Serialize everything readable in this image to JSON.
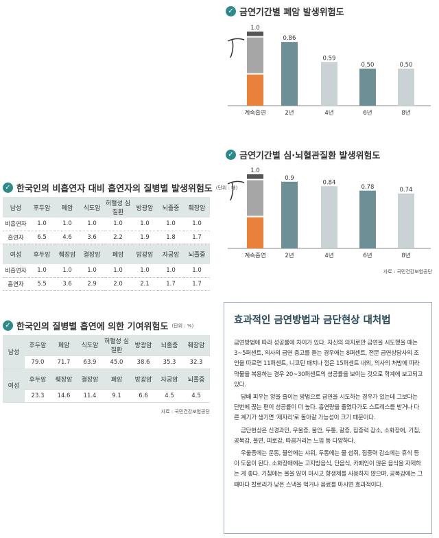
{
  "chart1": {
    "heading": "금연기간별 폐암 발생위험도",
    "chart_data": {
      "type": "bar",
      "categories": [
        "계속흡연",
        "2년",
        "4년",
        "6년",
        "8년"
      ],
      "values": [
        1.0,
        0.86,
        0.59,
        0.5,
        0.5
      ],
      "value_labels": [
        "1.0",
        "0.86",
        "0.59",
        "0.50",
        "0.50"
      ],
      "ylim": [
        0,
        1.0
      ],
      "colors": [
        "#e8823a",
        "#6e8f95",
        "#c9d3d6",
        "#6e8f95",
        "#c9d3d6"
      ]
    }
  },
  "chart2": {
    "heading": "금연기간별 심·뇌혈관질환 발생위험도",
    "chart_data": {
      "type": "bar",
      "categories": [
        "계속흡연",
        "2년",
        "4년",
        "6년",
        "8년"
      ],
      "values": [
        1.0,
        0.9,
        0.84,
        0.78,
        0.74
      ],
      "value_labels": [
        "1.0",
        "0.9",
        "0.84",
        "0.78",
        "0.74"
      ],
      "ylim": [
        0,
        1.0
      ],
      "colors": [
        "#e8823a",
        "#6e8f95",
        "#c9d3d6",
        "#6e8f95",
        "#c9d3d6"
      ]
    },
    "source": "자료 : 국민건강보험공단"
  },
  "table1": {
    "heading": "한국인의 비흡연자 대비 흡연자의 질병별 발생위험도",
    "unit": "(단위 : 배)",
    "male": {
      "header": [
        "남성",
        "후두암",
        "폐암",
        "식도암",
        "허혈성 심질환",
        "방광암",
        "뇌졸중",
        "췌장암"
      ],
      "rows": [
        [
          "비흡연자",
          "1.0",
          "1.0",
          "1.0",
          "1.0",
          "1.0",
          "1.0",
          "1.0"
        ],
        [
          "흡연자",
          "6.5",
          "4.6",
          "3.6",
          "2.2",
          "1.9",
          "1.8",
          "1.7"
        ]
      ]
    },
    "female": {
      "header": [
        "여성",
        "후두암",
        "췌장암",
        "결장암",
        "폐암",
        "방광암",
        "자궁암",
        "뇌졸중"
      ],
      "rows": [
        [
          "비흡연자",
          "1.0",
          "1.0",
          "1.0",
          "1.0",
          "1.0",
          "1.0",
          "1.0"
        ],
        [
          "흡연자",
          "5.5",
          "3.6",
          "2.9",
          "2.0",
          "2.1",
          "1.7",
          "1.7"
        ]
      ]
    }
  },
  "table2": {
    "heading": "한국인의 질병별 흡연에 의한 기여위험도",
    "unit": "(단위 : %)",
    "male": {
      "label": "남성",
      "header": [
        "후두암",
        "폐암",
        "식도암",
        "허혈성 심질환",
        "방광암",
        "뇌졸중",
        "췌장암"
      ],
      "values": [
        "79.0",
        "71.7",
        "63.9",
        "45.0",
        "38.6",
        "35.3",
        "32.3"
      ]
    },
    "female": {
      "label": "여성",
      "header": [
        "후두암",
        "췌장암",
        "결장암",
        "폐암",
        "방광암",
        "자궁암",
        "뇌졸중"
      ],
      "values": [
        "23.3",
        "14.6",
        "11.4",
        "9.1",
        "6.6",
        "4.5",
        "4.5"
      ]
    },
    "source": "자료 : 국민건강보험공단"
  },
  "article": {
    "title": "효과적인 금연방법과 금단현상 대처법",
    "paragraphs": [
      "금연방법에 따라 성공률에 차이가 있다. 자신의 의지로만 금연을 시도했을 때는 3~5퍼센트, 의사의 금연 충고를 듣는 경우에는 8퍼센트, 전문 금연상담사의 조언을 따르면 11퍼센트, 니코틴 패치나 껌은 15퍼센트 내외, 의사의 처방에 따라 약물을 복용하는 경우 20~30퍼센트의 성공률을 보이는 것으로 학계에 보고되고 있다.",
      "담배 피우는 양을 줄이는 방법으로 금연을 시도하는 경우가 있는데 그보다는 단번에 끊는 편이 성공률이 더 높다. 흡연량을 줄였다가도 스트레스를 받거나 다른 계기가 생기면 '제자리'로 돌아갈 가능성이 크기 때문이다.",
      "금단현상은 신경과민, 우울증, 불안, 두통, 갈증, 집중력 감소, 소화장애, 기침, 공복감, 불면, 피로감, 따끔거리는 느낌 등 다양하다.",
      "우울증에는 운동, 불안에는 샤워, 두통에는 물 섭취, 집중력 감소에는 휴식 등이 도움이 된다. 소화장애에는 고지방음식, 단음식, 카페인이 많은 음식을 자제하는 게 좋다. 기침에는 물을 많이 마시고 향생제를 사용하지 않으며, 공복감에는 그때마다 칼로리가 낮은 스낵을 먹거나 음료를 마시면 효과적이다."
    ]
  }
}
